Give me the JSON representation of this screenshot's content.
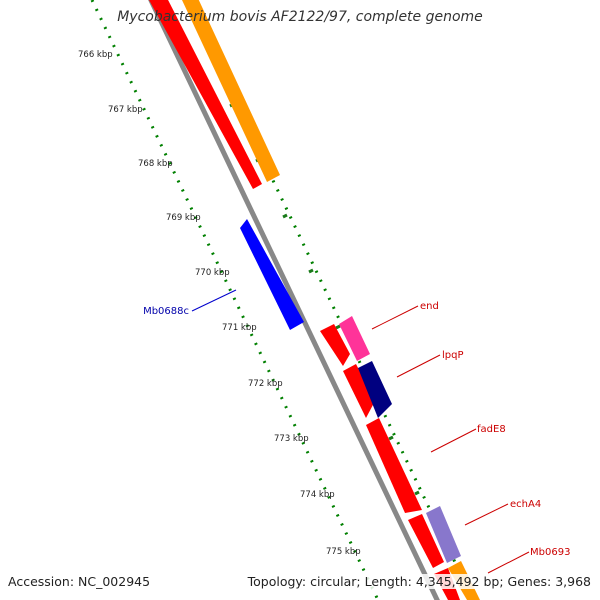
{
  "map_title": "Mycobacterium bovis AF2122/97, complete genome",
  "footer": {
    "accession": "Accession: NC_002945",
    "summary": "Topology: circular; Length: 4,345,492 bp; Genes: 3,968"
  },
  "ruler_labels": [
    "766 kbp",
    "767 kbp",
    "768 kbp",
    "769 kbp",
    "770 kbp",
    "771 kbp",
    "772 kbp",
    "773 kbp",
    "774 kbp",
    "775 kbp"
  ],
  "gene_labels": [
    {
      "text": "Mb0688c",
      "color": "#0000aa"
    },
    {
      "text": "end",
      "color": "#cc0000"
    },
    {
      "text": "lpqP",
      "color": "#cc0000"
    },
    {
      "text": "fadE8",
      "color": "#cc0000"
    },
    {
      "text": "echA4",
      "color": "#cc0000"
    },
    {
      "text": "Mb0693",
      "color": "#cc0000"
    }
  ],
  "colors": {
    "backbone": "#888888",
    "cds_red": "#ff0000",
    "cds_orange": "#ff9900",
    "cds_blue": "#0000ff",
    "cds_magenta": "#ff3399",
    "cds_navy": "#000080",
    "cds_lavender": "#8877cc",
    "ruler_dots": "#008000"
  }
}
